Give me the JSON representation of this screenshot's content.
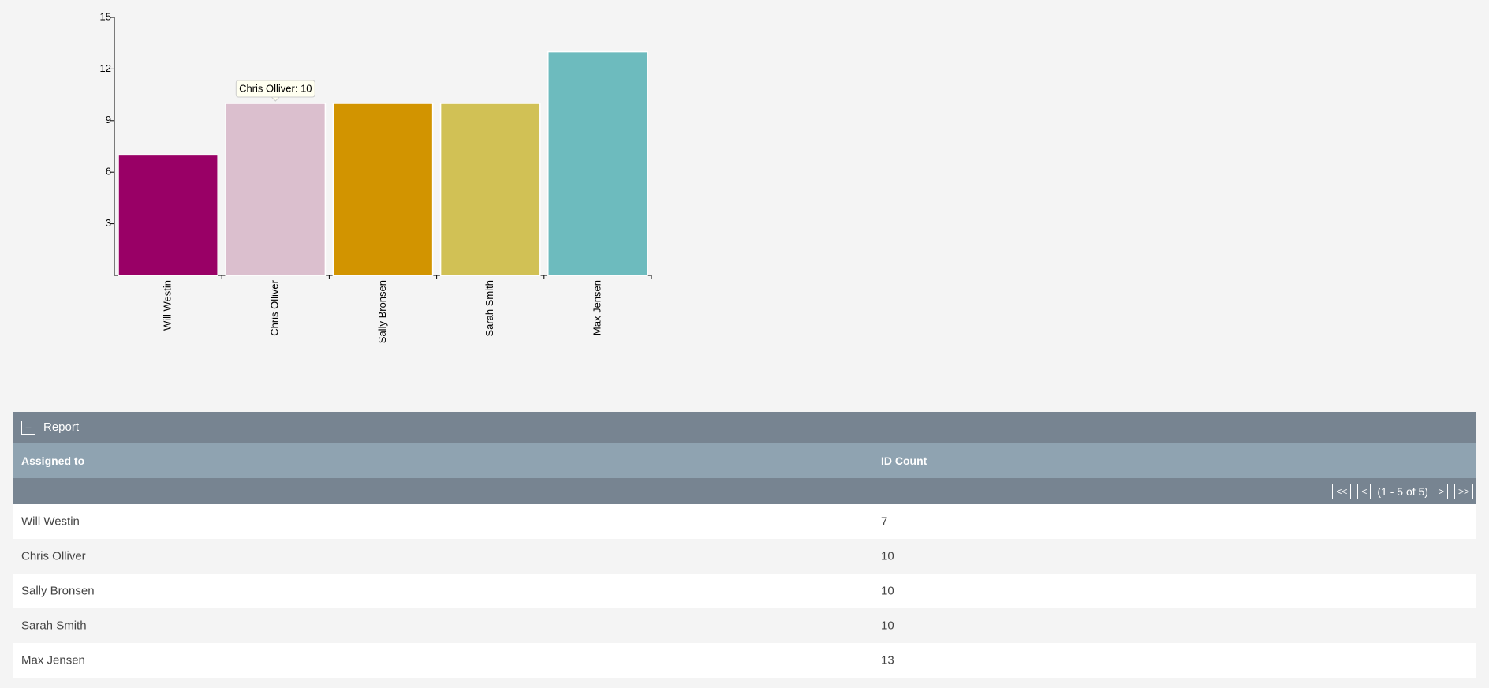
{
  "chart_data": {
    "type": "bar",
    "categories": [
      "Will Westin",
      "Chris Olliver",
      "Sally Bronsen",
      "Sarah Smith",
      "Max Jensen"
    ],
    "values": [
      7,
      10,
      10,
      10,
      13
    ],
    "colors": [
      "#990066",
      "#dbbfce",
      "#d29400",
      "#d1c155",
      "#6dbbbe"
    ],
    "ylim": [
      0,
      15
    ],
    "yticks": [
      3,
      6,
      9,
      12,
      15
    ],
    "tooltip": "Chris Olliver: 10"
  },
  "report": {
    "title": "Report",
    "columns": [
      "Assigned to",
      "ID Count"
    ],
    "pagination": {
      "first": "<<",
      "prev": "<",
      "status": "(1 - 5 of 5)",
      "next": ">",
      "last": ">>"
    },
    "rows": [
      [
        "Will Westin",
        "7"
      ],
      [
        "Chris Olliver",
        "10"
      ],
      [
        "Sally Bronsen",
        "10"
      ],
      [
        "Sarah Smith",
        "10"
      ],
      [
        "Max Jensen",
        "13"
      ]
    ]
  }
}
